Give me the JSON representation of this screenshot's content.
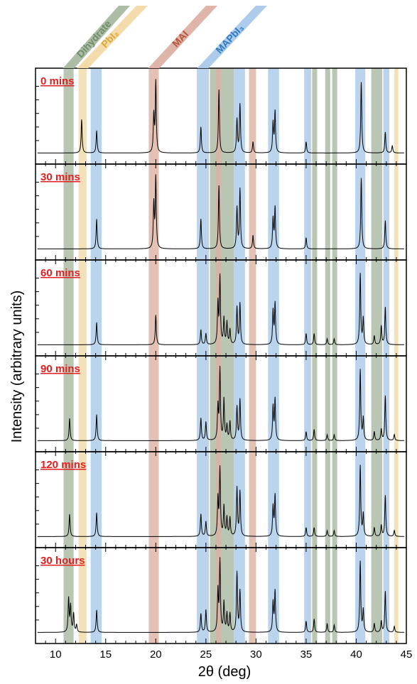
{
  "chart_data": {
    "type": "line",
    "xlabel": "2θ (deg)",
    "ylabel": "Intensity (arbitrary units)",
    "xlim": [
      8,
      45
    ],
    "x_ticks": [
      10,
      15,
      20,
      25,
      30,
      35,
      40,
      45
    ],
    "phase_labels": [
      {
        "name": "Dihydrate",
        "color": "#6f8f6a"
      },
      {
        "name": "PbI₂",
        "color": "#d9a93a"
      },
      {
        "name": "MAI",
        "color": "#b5563a"
      },
      {
        "name": "MAPbI₃",
        "color": "#2f7bbf"
      }
    ],
    "bands": [
      {
        "phase": "Dihydrate",
        "x0": 10.8,
        "x1": 11.8,
        "color": "#a8b8a0"
      },
      {
        "phase": "PbI₂",
        "x0": 12.3,
        "x1": 13.1,
        "color": "#f3d9a6"
      },
      {
        "phase": "MAPbI₃",
        "x0": 13.5,
        "x1": 14.6,
        "color": "#a9c9ea"
      },
      {
        "phase": "MAI",
        "x0": 19.3,
        "x1": 20.3,
        "color": "#dcb1a3"
      },
      {
        "phase": "MAPbI₃",
        "x0": 24.1,
        "x1": 25.3,
        "color": "#a9c9ea"
      },
      {
        "phase": "Dihydrate",
        "x0": 25.4,
        "x1": 27.8,
        "color": "#a8b8a0"
      },
      {
        "phase": "MAI",
        "x0": 26.0,
        "x1": 26.5,
        "color": "#dcb1a3"
      },
      {
        "phase": "MAPbI₃",
        "x0": 27.8,
        "x1": 28.9,
        "color": "#a9c9ea"
      },
      {
        "phase": "MAI",
        "x0": 29.3,
        "x1": 30.0,
        "color": "#dcb1a3"
      },
      {
        "phase": "MAPbI₃",
        "x0": 31.2,
        "x1": 32.3,
        "color": "#a9c9ea"
      },
      {
        "phase": "MAPbI₃",
        "x0": 34.8,
        "x1": 35.5,
        "color": "#a9c9ea"
      },
      {
        "phase": "Dihydrate",
        "x0": 35.6,
        "x1": 36.1,
        "color": "#a8b8a0"
      },
      {
        "phase": "Dihydrate",
        "x0": 36.9,
        "x1": 37.4,
        "color": "#a8b8a0"
      },
      {
        "phase": "Dihydrate",
        "x0": 37.6,
        "x1": 38.1,
        "color": "#a8b8a0"
      },
      {
        "phase": "MAPbI₃",
        "x0": 39.9,
        "x1": 40.9,
        "color": "#a9c9ea"
      },
      {
        "phase": "Dihydrate",
        "x0": 41.5,
        "x1": 42.6,
        "color": "#a8b8a0"
      },
      {
        "phase": "MAPbI₃",
        "x0": 42.7,
        "x1": 43.3,
        "color": "#a9c9ea"
      },
      {
        "phase": "PbI₂",
        "x0": 43.8,
        "x1": 44.2,
        "color": "#f3d9a6"
      }
    ],
    "series": [
      {
        "name": "0 mins",
        "peaks": [
          [
            12.6,
            0.45
          ],
          [
            14.1,
            0.3
          ],
          [
            19.8,
            0.5
          ],
          [
            20.0,
            0.95
          ],
          [
            24.5,
            0.35
          ],
          [
            26.3,
            0.85
          ],
          [
            28.1,
            0.45
          ],
          [
            28.4,
            0.65
          ],
          [
            29.7,
            0.15
          ],
          [
            31.7,
            0.4
          ],
          [
            31.9,
            0.55
          ],
          [
            35.0,
            0.15
          ],
          [
            40.5,
            0.95
          ],
          [
            42.9,
            0.28
          ],
          [
            43.6,
            0.1
          ]
        ]
      },
      {
        "name": "30 mins",
        "peaks": [
          [
            14.1,
            0.4
          ],
          [
            19.8,
            0.6
          ],
          [
            20.0,
            0.95
          ],
          [
            24.5,
            0.4
          ],
          [
            26.3,
            0.85
          ],
          [
            28.1,
            0.55
          ],
          [
            28.4,
            0.8
          ],
          [
            29.7,
            0.18
          ],
          [
            31.7,
            0.4
          ],
          [
            31.9,
            0.55
          ],
          [
            35.0,
            0.15
          ],
          [
            40.5,
            0.95
          ],
          [
            42.9,
            0.38
          ]
        ]
      },
      {
        "name": "60 mins",
        "peaks": [
          [
            14.1,
            0.3
          ],
          [
            20.0,
            0.4
          ],
          [
            24.5,
            0.2
          ],
          [
            25.0,
            0.15
          ],
          [
            26.2,
            0.55
          ],
          [
            26.4,
            0.9
          ],
          [
            26.8,
            0.35
          ],
          [
            27.1,
            0.3
          ],
          [
            27.4,
            0.2
          ],
          [
            28.1,
            0.5
          ],
          [
            28.4,
            0.55
          ],
          [
            31.7,
            0.45
          ],
          [
            31.9,
            0.55
          ],
          [
            35.0,
            0.15
          ],
          [
            35.8,
            0.15
          ],
          [
            37.1,
            0.08
          ],
          [
            37.8,
            0.08
          ],
          [
            40.4,
            0.95
          ],
          [
            40.7,
            0.35
          ],
          [
            41.8,
            0.12
          ],
          [
            42.5,
            0.25
          ],
          [
            42.9,
            0.5
          ]
        ]
      },
      {
        "name": "90 mins",
        "peaks": [
          [
            11.4,
            0.3
          ],
          [
            14.1,
            0.35
          ],
          [
            24.5,
            0.3
          ],
          [
            25.0,
            0.25
          ],
          [
            26.2,
            0.45
          ],
          [
            26.4,
            0.95
          ],
          [
            26.8,
            0.55
          ],
          [
            27.1,
            0.2
          ],
          [
            27.4,
            0.25
          ],
          [
            28.1,
            0.45
          ],
          [
            28.4,
            0.55
          ],
          [
            31.7,
            0.45
          ],
          [
            31.9,
            0.55
          ],
          [
            35.0,
            0.12
          ],
          [
            35.8,
            0.15
          ],
          [
            37.1,
            0.08
          ],
          [
            37.8,
            0.08
          ],
          [
            40.4,
            0.95
          ],
          [
            40.7,
            0.3
          ],
          [
            41.8,
            0.12
          ],
          [
            42.5,
            0.15
          ],
          [
            42.9,
            0.6
          ],
          [
            43.8,
            0.08
          ]
        ]
      },
      {
        "name": "120 mins",
        "peaks": [
          [
            11.4,
            0.3
          ],
          [
            14.1,
            0.32
          ],
          [
            24.5,
            0.3
          ],
          [
            25.0,
            0.2
          ],
          [
            26.2,
            0.5
          ],
          [
            26.4,
            0.9
          ],
          [
            26.8,
            0.4
          ],
          [
            27.1,
            0.25
          ],
          [
            27.4,
            0.25
          ],
          [
            28.1,
            0.65
          ],
          [
            28.4,
            0.6
          ],
          [
            31.7,
            0.4
          ],
          [
            31.9,
            0.55
          ],
          [
            35.0,
            0.12
          ],
          [
            35.8,
            0.12
          ],
          [
            37.1,
            0.08
          ],
          [
            37.8,
            0.08
          ],
          [
            40.4,
            0.95
          ],
          [
            40.7,
            0.3
          ],
          [
            41.8,
            0.12
          ],
          [
            42.5,
            0.15
          ],
          [
            42.9,
            0.55
          ],
          [
            43.8,
            0.08
          ]
        ]
      },
      {
        "name": "30 hours",
        "peaks": [
          [
            11.3,
            0.45
          ],
          [
            11.5,
            0.35
          ],
          [
            11.8,
            0.25
          ],
          [
            12.1,
            0.1
          ],
          [
            14.1,
            0.3
          ],
          [
            24.5,
            0.25
          ],
          [
            25.0,
            0.3
          ],
          [
            26.2,
            0.55
          ],
          [
            26.4,
            0.95
          ],
          [
            26.8,
            0.4
          ],
          [
            27.1,
            0.25
          ],
          [
            27.4,
            0.25
          ],
          [
            28.1,
            0.8
          ],
          [
            28.4,
            0.55
          ],
          [
            31.7,
            0.4
          ],
          [
            31.9,
            0.55
          ],
          [
            35.0,
            0.15
          ],
          [
            35.8,
            0.18
          ],
          [
            37.1,
            0.12
          ],
          [
            37.8,
            0.1
          ],
          [
            40.4,
            0.95
          ],
          [
            40.7,
            0.3
          ],
          [
            41.8,
            0.12
          ],
          [
            42.5,
            0.15
          ],
          [
            42.9,
            0.55
          ],
          [
            43.8,
            0.08
          ]
        ]
      }
    ]
  }
}
